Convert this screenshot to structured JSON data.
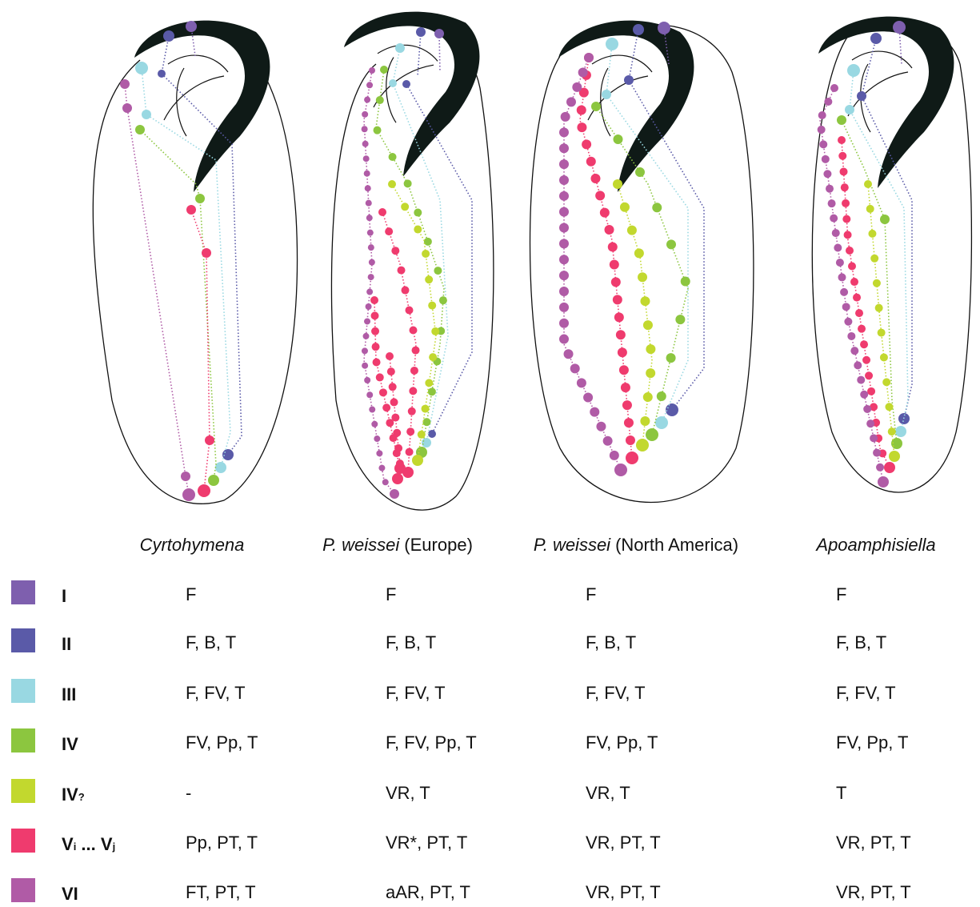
{
  "species": [
    {
      "italic": "Cyrtohymena"
    },
    {
      "italic": "P. weissei",
      "plain": "(Europe)"
    },
    {
      "italic": "P. weissei",
      "plain": "(North America)"
    },
    {
      "italic": "Apoamphisiella"
    }
  ],
  "rows": [
    {
      "label": [
        {
          "text": "I"
        }
      ],
      "color": "#7e5fae",
      "cells": [
        "F",
        "F",
        "F",
        "F"
      ]
    },
    {
      "label": [
        {
          "text": "II"
        }
      ],
      "color": "#5a5aa8",
      "cells": [
        "F, B, T",
        "F, B, T",
        "F, B, T",
        "F, B, T"
      ]
    },
    {
      "label": [
        {
          "text": "III"
        }
      ],
      "color": "#99d8e2",
      "cells": [
        "F, FV, T",
        "F, FV, T",
        "F, FV, T",
        "F, FV, T"
      ]
    },
    {
      "label": [
        {
          "text": "IV"
        }
      ],
      "color": "#8cc63f",
      "cells": [
        "FV, Pp, T",
        "F, FV, Pp, T",
        "FV, Pp, T",
        "FV, Pp, T"
      ]
    },
    {
      "label": [
        {
          "text": "IV"
        },
        {
          "text": "?",
          "small": true
        }
      ],
      "color": "#c2d82e",
      "cells": [
        "-",
        "VR, T",
        "VR, T",
        "T"
      ]
    },
    {
      "label": [
        {
          "text": "V"
        },
        {
          "text": "i",
          "small": true
        },
        {
          "text": " ... V"
        },
        {
          "text": "j",
          "small": true
        }
      ],
      "color": "#ef3b6e",
      "cells": [
        "Pp, PT, T",
        "VR*, PT, T",
        "VR, PT, T",
        "VR, PT, T"
      ]
    },
    {
      "label": [
        {
          "text": "VI"
        }
      ],
      "color": "#b05ba6",
      "cells": [
        "FT, PT, T",
        "aAR, PT, T",
        "VR, PT, T",
        "VR, PT, T"
      ]
    }
  ]
}
